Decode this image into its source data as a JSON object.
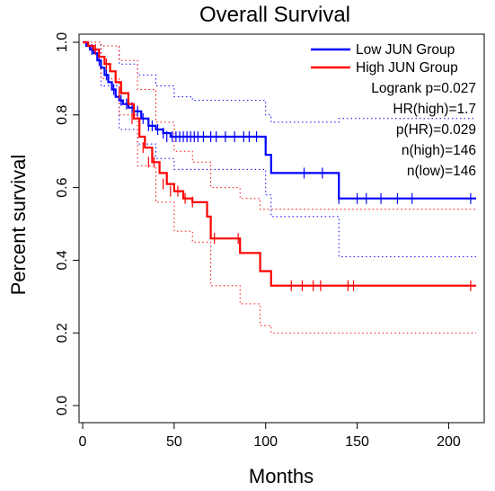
{
  "chart_data": {
    "type": "line",
    "title": "Overall Survival",
    "xlabel": "Months",
    "ylabel": "Percent survival",
    "xlim": [
      0,
      220
    ],
    "ylim": [
      0,
      1
    ],
    "x_ticks": [
      "0",
      "50",
      "100",
      "150",
      "200"
    ],
    "x_tick_values": [
      0,
      50,
      100,
      150,
      200
    ],
    "y_ticks": [
      "0.0",
      "0.2",
      "0.4",
      "0.6",
      "0.8",
      "1.0"
    ],
    "y_tick_values": [
      0.0,
      0.2,
      0.4,
      0.6,
      0.8,
      1.0
    ],
    "legend_position": "top-right",
    "grid": false,
    "series": [
      {
        "name": "Low JUN Group",
        "color": "#0000ff",
        "step_x": [
          0,
          2,
          4,
          6,
          8,
          10,
          12,
          14,
          16,
          18,
          20,
          22,
          25,
          28,
          32,
          36,
          40,
          44,
          48,
          96,
          100,
          103,
          137,
          140,
          215
        ],
        "step_y": [
          1.0,
          0.99,
          0.98,
          0.97,
          0.95,
          0.93,
          0.91,
          0.89,
          0.87,
          0.85,
          0.84,
          0.83,
          0.82,
          0.81,
          0.79,
          0.77,
          0.76,
          0.75,
          0.74,
          0.74,
          0.69,
          0.64,
          0.64,
          0.57,
          0.57
        ],
        "censor_x": [
          5,
          9,
          13,
          17,
          21,
          24,
          27,
          30,
          33,
          36,
          38,
          41,
          44,
          46,
          49,
          51,
          53,
          55,
          57,
          59,
          61,
          63,
          66,
          70,
          73,
          78,
          83,
          88,
          91,
          95,
          121,
          131,
          140,
          150,
          155,
          163,
          172,
          180,
          212
        ],
        "censor_y": [
          0.98,
          0.95,
          0.91,
          0.87,
          0.84,
          0.83,
          0.82,
          0.81,
          0.79,
          0.77,
          0.77,
          0.76,
          0.75,
          0.74,
          0.74,
          0.74,
          0.74,
          0.74,
          0.74,
          0.74,
          0.74,
          0.74,
          0.74,
          0.74,
          0.74,
          0.74,
          0.74,
          0.74,
          0.74,
          0.74,
          0.64,
          0.64,
          0.57,
          0.57,
          0.57,
          0.57,
          0.57,
          0.57,
          0.57
        ],
        "ci_upper_x": [
          0,
          10,
          20,
          30,
          40,
          50,
          60,
          96,
          100,
          103,
          137,
          140,
          215
        ],
        "ci_upper_y": [
          1.0,
          0.99,
          0.94,
          0.91,
          0.88,
          0.85,
          0.84,
          0.84,
          0.8,
          0.78,
          0.78,
          0.79,
          0.79
        ],
        "ci_lower_x": [
          0,
          10,
          20,
          30,
          40,
          50,
          60,
          96,
          100,
          103,
          137,
          140,
          215
        ],
        "ci_lower_y": [
          1.0,
          0.88,
          0.76,
          0.72,
          0.68,
          0.65,
          0.65,
          0.65,
          0.58,
          0.52,
          0.52,
          0.41,
          0.41
        ]
      },
      {
        "name": "High JUN Group",
        "color": "#ff0000",
        "step_x": [
          0,
          3,
          6,
          9,
          12,
          15,
          18,
          21,
          25,
          28,
          31,
          34,
          38,
          42,
          46,
          50,
          55,
          60,
          65,
          68,
          70,
          84,
          86,
          97,
          103,
          215
        ],
        "step_y": [
          1.0,
          0.99,
          0.98,
          0.96,
          0.94,
          0.92,
          0.89,
          0.86,
          0.83,
          0.79,
          0.74,
          0.71,
          0.67,
          0.64,
          0.61,
          0.59,
          0.57,
          0.56,
          0.56,
          0.52,
          0.46,
          0.46,
          0.42,
          0.37,
          0.33,
          0.33
        ],
        "censor_x": [
          7,
          13,
          20,
          27,
          33,
          36,
          39,
          44,
          48,
          52,
          56,
          60,
          72,
          85,
          114,
          120,
          126,
          130,
          145,
          148,
          212
        ],
        "censor_y": [
          0.98,
          0.94,
          0.86,
          0.79,
          0.71,
          0.67,
          0.67,
          0.61,
          0.59,
          0.59,
          0.57,
          0.56,
          0.46,
          0.46,
          0.33,
          0.33,
          0.33,
          0.33,
          0.33,
          0.33,
          0.33
        ],
        "ci_upper_x": [
          0,
          10,
          20,
          30,
          40,
          50,
          60,
          70,
          84,
          86,
          97,
          103,
          215
        ],
        "ci_upper_y": [
          1.0,
          0.99,
          0.95,
          0.87,
          0.78,
          0.7,
          0.67,
          0.6,
          0.6,
          0.57,
          0.54,
          0.54,
          0.54
        ],
        "ci_lower_x": [
          0,
          10,
          20,
          30,
          40,
          50,
          60,
          70,
          84,
          86,
          97,
          103,
          215
        ],
        "ci_lower_y": [
          1.0,
          0.9,
          0.8,
          0.66,
          0.56,
          0.48,
          0.45,
          0.33,
          0.33,
          0.28,
          0.22,
          0.2,
          0.2
        ]
      }
    ],
    "annotations": [
      "Logrank p=0.027",
      "HR(high)=1.7",
      "p(HR)=0.029",
      "n(high)=146",
      "n(low)=146"
    ]
  }
}
